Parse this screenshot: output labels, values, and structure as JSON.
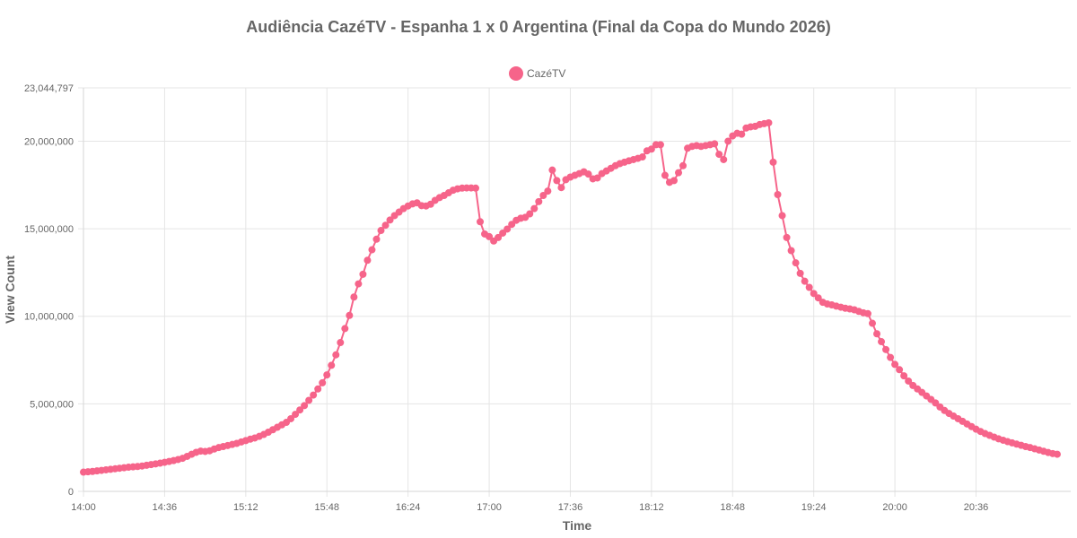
{
  "chart_data": {
    "type": "line",
    "title": "Audiência CazéTV - Espanha 1 x 0 Argentina (Final da Copa do Mundo 2026)",
    "xlabel": "Time",
    "ylabel": "View Count",
    "ylim": [
      0,
      23044797
    ],
    "y_tick_labels": [
      "0",
      "5,000,000",
      "10,000,000",
      "15,000,000",
      "20,000,000",
      "23,044,797"
    ],
    "y_tick_values": [
      0,
      5000000,
      10000000,
      15000000,
      20000000,
      23044797
    ],
    "x_tick_labels": [
      "14:00",
      "14:36",
      "15:12",
      "15:48",
      "16:24",
      "17:00",
      "17:36",
      "18:12",
      "18:48",
      "19:24",
      "20:00",
      "20:36"
    ],
    "x_range_minutes": [
      "14:00",
      "21:18"
    ],
    "legend": {
      "position": "top",
      "entries": [
        "CazéTV"
      ]
    },
    "grid": true,
    "colors": {
      "series": "#f6648a"
    },
    "series": [
      {
        "name": "CazéTV",
        "points": [
          [
            "14:00",
            1100000
          ],
          [
            "14:02",
            1120000
          ],
          [
            "14:04",
            1140000
          ],
          [
            "14:06",
            1170000
          ],
          [
            "14:08",
            1200000
          ],
          [
            "14:10",
            1230000
          ],
          [
            "14:12",
            1260000
          ],
          [
            "14:14",
            1290000
          ],
          [
            "14:16",
            1320000
          ],
          [
            "14:18",
            1350000
          ],
          [
            "14:20",
            1380000
          ],
          [
            "14:22",
            1400000
          ],
          [
            "14:24",
            1420000
          ],
          [
            "14:26",
            1450000
          ],
          [
            "14:28",
            1490000
          ],
          [
            "14:30",
            1530000
          ],
          [
            "14:32",
            1570000
          ],
          [
            "14:34",
            1610000
          ],
          [
            "14:36",
            1660000
          ],
          [
            "14:38",
            1710000
          ],
          [
            "14:40",
            1760000
          ],
          [
            "14:42",
            1820000
          ],
          [
            "14:44",
            1890000
          ],
          [
            "14:46",
            2000000
          ],
          [
            "14:48",
            2120000
          ],
          [
            "14:50",
            2230000
          ],
          [
            "14:52",
            2300000
          ],
          [
            "14:54",
            2280000
          ],
          [
            "14:56",
            2320000
          ],
          [
            "14:58",
            2420000
          ],
          [
            "15:00",
            2500000
          ],
          [
            "15:02",
            2560000
          ],
          [
            "15:04",
            2620000
          ],
          [
            "15:06",
            2680000
          ],
          [
            "15:08",
            2740000
          ],
          [
            "15:10",
            2820000
          ],
          [
            "15:12",
            2900000
          ],
          [
            "15:14",
            2980000
          ],
          [
            "15:16",
            3050000
          ],
          [
            "15:18",
            3140000
          ],
          [
            "15:20",
            3250000
          ],
          [
            "15:22",
            3380000
          ],
          [
            "15:24",
            3520000
          ],
          [
            "15:26",
            3660000
          ],
          [
            "15:28",
            3800000
          ],
          [
            "15:30",
            3940000
          ],
          [
            "15:32",
            4150000
          ],
          [
            "15:34",
            4400000
          ],
          [
            "15:36",
            4650000
          ],
          [
            "15:38",
            4900000
          ],
          [
            "15:40",
            5200000
          ],
          [
            "15:42",
            5500000
          ],
          [
            "15:44",
            5850000
          ],
          [
            "15:46",
            6200000
          ],
          [
            "15:48",
            6650000
          ],
          [
            "15:50",
            7200000
          ],
          [
            "15:52",
            7800000
          ],
          [
            "15:54",
            8500000
          ],
          [
            "15:56",
            9300000
          ],
          [
            "15:58",
            10050000
          ],
          [
            "16:00",
            11100000
          ],
          [
            "16:02",
            11850000
          ],
          [
            "16:04",
            12400000
          ],
          [
            "16:06",
            13200000
          ],
          [
            "16:08",
            13800000
          ],
          [
            "16:10",
            14400000
          ],
          [
            "16:12",
            14900000
          ],
          [
            "16:14",
            15200000
          ],
          [
            "16:16",
            15500000
          ],
          [
            "16:18",
            15750000
          ],
          [
            "16:20",
            15950000
          ],
          [
            "16:22",
            16150000
          ],
          [
            "16:24",
            16300000
          ],
          [
            "16:26",
            16420000
          ],
          [
            "16:28",
            16480000
          ],
          [
            "16:30",
            16320000
          ],
          [
            "16:32",
            16300000
          ],
          [
            "16:34",
            16400000
          ],
          [
            "16:36",
            16620000
          ],
          [
            "16:38",
            16780000
          ],
          [
            "16:40",
            16900000
          ],
          [
            "16:42",
            17050000
          ],
          [
            "16:44",
            17200000
          ],
          [
            "16:46",
            17280000
          ],
          [
            "16:48",
            17320000
          ],
          [
            "16:50",
            17330000
          ],
          [
            "16:52",
            17330000
          ],
          [
            "16:54",
            17320000
          ],
          [
            "16:56",
            15400000
          ],
          [
            "16:58",
            14700000
          ],
          [
            "17:00",
            14550000
          ],
          [
            "17:02",
            14300000
          ],
          [
            "17:04",
            14500000
          ],
          [
            "17:06",
            14750000
          ],
          [
            "17:08",
            14980000
          ],
          [
            "17:10",
            15250000
          ],
          [
            "17:12",
            15480000
          ],
          [
            "17:14",
            15600000
          ],
          [
            "17:16",
            15650000
          ],
          [
            "17:18",
            15850000
          ],
          [
            "17:20",
            16150000
          ],
          [
            "17:22",
            16550000
          ],
          [
            "17:24",
            16900000
          ],
          [
            "17:26",
            17150000
          ],
          [
            "17:28",
            18350000
          ],
          [
            "17:30",
            17750000
          ],
          [
            "17:32",
            17350000
          ],
          [
            "17:34",
            17800000
          ],
          [
            "17:36",
            17950000
          ],
          [
            "17:38",
            18050000
          ],
          [
            "17:40",
            18150000
          ],
          [
            "17:42",
            18250000
          ],
          [
            "17:44",
            18120000
          ],
          [
            "17:46",
            17850000
          ],
          [
            "17:48",
            17900000
          ],
          [
            "17:50",
            18150000
          ],
          [
            "17:52",
            18300000
          ],
          [
            "17:54",
            18450000
          ],
          [
            "17:56",
            18600000
          ],
          [
            "17:58",
            18720000
          ],
          [
            "18:00",
            18800000
          ],
          [
            "18:02",
            18880000
          ],
          [
            "18:04",
            18950000
          ],
          [
            "18:06",
            19020000
          ],
          [
            "18:08",
            19100000
          ],
          [
            "18:10",
            19450000
          ],
          [
            "18:12",
            19550000
          ],
          [
            "18:14",
            19800000
          ],
          [
            "18:16",
            19800000
          ],
          [
            "18:18",
            18050000
          ],
          [
            "18:20",
            17650000
          ],
          [
            "18:22",
            17750000
          ],
          [
            "18:24",
            18200000
          ],
          [
            "18:26",
            18600000
          ],
          [
            "18:28",
            19600000
          ],
          [
            "18:30",
            19700000
          ],
          [
            "18:32",
            19750000
          ],
          [
            "18:34",
            19700000
          ],
          [
            "18:36",
            19750000
          ],
          [
            "18:38",
            19800000
          ],
          [
            "18:40",
            19850000
          ],
          [
            "18:42",
            19250000
          ],
          [
            "18:44",
            18950000
          ],
          [
            "18:46",
            20000000
          ],
          [
            "18:48",
            20300000
          ],
          [
            "18:50",
            20450000
          ],
          [
            "18:52",
            20400000
          ],
          [
            "18:54",
            20750000
          ],
          [
            "18:56",
            20820000
          ],
          [
            "18:58",
            20850000
          ],
          [
            "19:00",
            20950000
          ],
          [
            "19:02",
            21000000
          ],
          [
            "19:04",
            21050000
          ],
          [
            "19:06",
            18800000
          ],
          [
            "19:08",
            16950000
          ],
          [
            "19:10",
            15750000
          ],
          [
            "19:12",
            14500000
          ],
          [
            "19:14",
            13750000
          ],
          [
            "19:16",
            13050000
          ],
          [
            "19:18",
            12450000
          ],
          [
            "19:20",
            12000000
          ],
          [
            "19:22",
            11650000
          ],
          [
            "19:24",
            11300000
          ],
          [
            "19:26",
            11050000
          ],
          [
            "19:28",
            10800000
          ],
          [
            "19:30",
            10700000
          ],
          [
            "19:32",
            10650000
          ],
          [
            "19:34",
            10580000
          ],
          [
            "19:36",
            10520000
          ],
          [
            "19:38",
            10460000
          ],
          [
            "19:40",
            10420000
          ],
          [
            "19:42",
            10370000
          ],
          [
            "19:44",
            10280000
          ],
          [
            "19:46",
            10200000
          ],
          [
            "19:48",
            10150000
          ],
          [
            "19:50",
            9600000
          ],
          [
            "19:52",
            9000000
          ],
          [
            "19:54",
            8550000
          ],
          [
            "19:56",
            8100000
          ],
          [
            "19:58",
            7650000
          ],
          [
            "20:00",
            7250000
          ],
          [
            "20:02",
            6950000
          ],
          [
            "20:04",
            6600000
          ],
          [
            "20:06",
            6300000
          ],
          [
            "20:08",
            6050000
          ],
          [
            "20:10",
            5850000
          ],
          [
            "20:12",
            5650000
          ],
          [
            "20:14",
            5450000
          ],
          [
            "20:16",
            5250000
          ],
          [
            "20:18",
            5050000
          ],
          [
            "20:20",
            4820000
          ],
          [
            "20:22",
            4620000
          ],
          [
            "20:24",
            4450000
          ],
          [
            "20:26",
            4300000
          ],
          [
            "20:28",
            4150000
          ],
          [
            "20:30",
            4000000
          ],
          [
            "20:32",
            3850000
          ],
          [
            "20:34",
            3700000
          ],
          [
            "20:36",
            3550000
          ],
          [
            "20:38",
            3420000
          ],
          [
            "20:40",
            3300000
          ],
          [
            "20:42",
            3200000
          ],
          [
            "20:44",
            3100000
          ],
          [
            "20:46",
            3000000
          ],
          [
            "20:48",
            2920000
          ],
          [
            "20:50",
            2840000
          ],
          [
            "20:52",
            2770000
          ],
          [
            "20:54",
            2700000
          ],
          [
            "20:56",
            2630000
          ],
          [
            "20:58",
            2560000
          ],
          [
            "21:00",
            2500000
          ],
          [
            "21:02",
            2430000
          ],
          [
            "21:04",
            2360000
          ],
          [
            "21:06",
            2290000
          ],
          [
            "21:08",
            2220000
          ],
          [
            "21:10",
            2160000
          ],
          [
            "21:12",
            2120000
          ]
        ]
      }
    ]
  }
}
